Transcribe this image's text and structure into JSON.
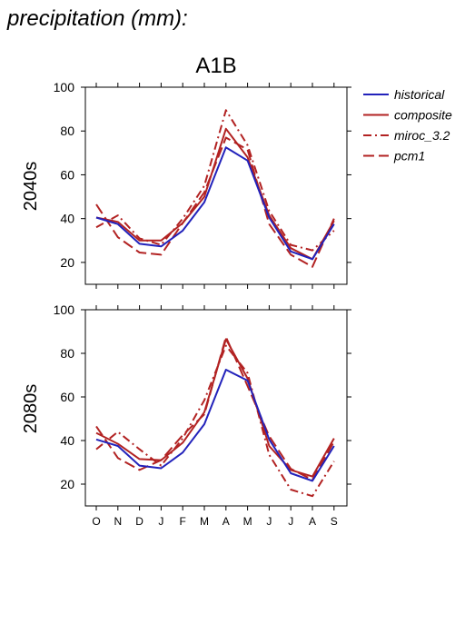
{
  "figure": {
    "heading": "precipitation (mm):",
    "scenario": "A1B"
  },
  "legend": [
    {
      "name": "historical",
      "color": "#2222bb",
      "dash": "solid"
    },
    {
      "name": "composite",
      "color": "#b22222",
      "dash": "solid"
    },
    {
      "name": "miroc_3.2",
      "color": "#b22222",
      "dash": "dashdot"
    },
    {
      "name": "pcm1",
      "color": "#b22222",
      "dash": "dashed"
    }
  ],
  "chart_data": [
    {
      "type": "line",
      "title": "A1B",
      "ylabel": "2040s",
      "xlabel": "",
      "categories": [
        "O",
        "N",
        "D",
        "J",
        "F",
        "M",
        "A",
        "M",
        "J",
        "J",
        "A",
        "S"
      ],
      "ylim": [
        10,
        100
      ],
      "yticks": [
        20,
        40,
        60,
        80,
        100
      ],
      "series": [
        {
          "name": "historical",
          "values": [
            40.5,
            37.5,
            28.5,
            27.3,
            34.5,
            47.5,
            72.5,
            66.5,
            40.5,
            25.0,
            21.5,
            37.5
          ]
        },
        {
          "name": "composite",
          "values": [
            40.5,
            38.5,
            30.0,
            30.0,
            38.0,
            50.0,
            81.0,
            68.0,
            41.5,
            26.5,
            21.5,
            39.0
          ]
        },
        {
          "name": "miroc_3.2",
          "values": [
            36.0,
            41.5,
            31.0,
            28.0,
            40.0,
            55.0,
            89.5,
            73.5,
            43.5,
            28.0,
            25.5,
            34.5
          ]
        },
        {
          "name": "pcm1",
          "values": [
            46.5,
            31.5,
            24.5,
            23.5,
            38.0,
            52.0,
            77.0,
            71.5,
            37.5,
            23.5,
            18.0,
            40.0
          ]
        }
      ]
    },
    {
      "type": "line",
      "title": "",
      "ylabel": "2080s",
      "xlabel": "",
      "categories": [
        "O",
        "N",
        "D",
        "J",
        "F",
        "M",
        "A",
        "M",
        "J",
        "J",
        "A",
        "S"
      ],
      "ylim": [
        10,
        100
      ],
      "yticks": [
        20,
        40,
        60,
        80,
        100
      ],
      "series": [
        {
          "name": "historical",
          "values": [
            40.5,
            37.5,
            28.5,
            27.3,
            34.5,
            47.5,
            72.5,
            67.5,
            40.5,
            25.0,
            21.5,
            37.5
          ]
        },
        {
          "name": "composite",
          "values": [
            43.5,
            38.5,
            31.5,
            31.0,
            39.0,
            53.0,
            86.5,
            68.5,
            37.5,
            26.5,
            23.5,
            41.0
          ]
        },
        {
          "name": "miroc_3.2",
          "values": [
            36.0,
            44.0,
            36.0,
            28.5,
            41.0,
            58.5,
            83.5,
            71.0,
            33.5,
            17.5,
            14.5,
            30.5
          ]
        },
        {
          "name": "pcm1",
          "values": [
            46.5,
            32.0,
            26.5,
            31.0,
            42.5,
            52.0,
            87.5,
            65.0,
            42.0,
            27.0,
            22.0,
            39.5
          ]
        }
      ]
    }
  ]
}
